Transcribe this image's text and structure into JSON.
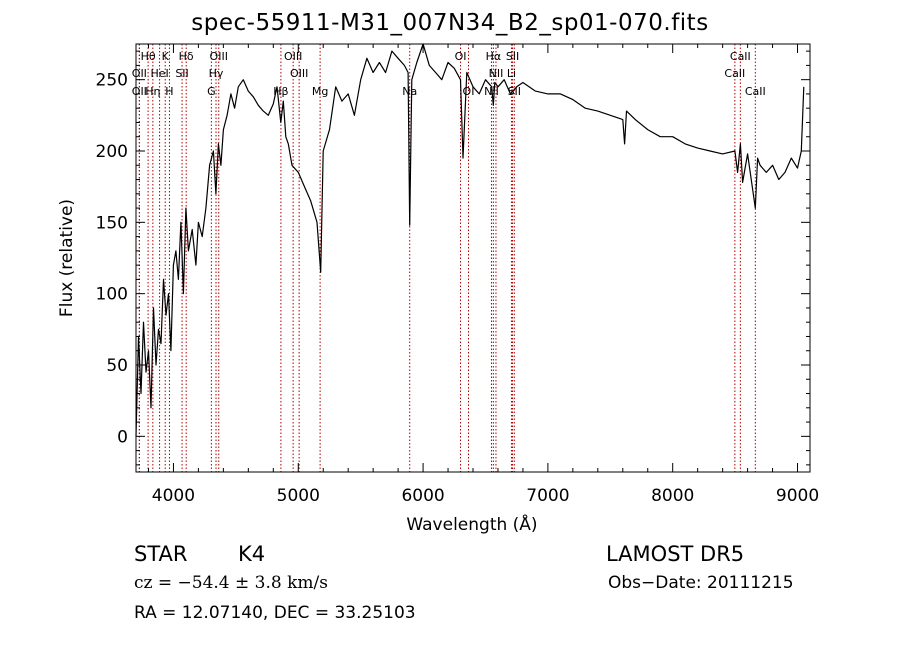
{
  "header": {
    "title": "spec-55911-M31_007N34_B2_sp01-070.fits"
  },
  "footer": {
    "class_label": "STAR",
    "subclass_label": "K4",
    "survey_label": "LAMOST  DR5",
    "cz_text": "cz = −54.4 ± 3.8 km/s",
    "obs_date_text": "Obs−Date: 20111215",
    "radec_text": "RA =  12.07140, DEC =  33.25103"
  },
  "colors": {
    "spectrum": "#000000",
    "line_markers": "#b00000",
    "axes": "#000000"
  },
  "chart_data": {
    "type": "line",
    "title": "spec-55911-M31_007N34_B2_sp01-070.fits",
    "xlabel": "Wavelength (Å)",
    "ylabel": "Flux (relative)",
    "xlim": [
      3700,
      9100
    ],
    "ylim": [
      -25,
      275
    ],
    "grid": false,
    "x_ticks": [
      4000,
      5000,
      6000,
      7000,
      8000,
      9000
    ],
    "y_ticks": [
      0,
      50,
      100,
      150,
      200,
      250
    ],
    "series": [
      {
        "x": [
          3700,
          3720,
          3740,
          3760,
          3780,
          3800,
          3820,
          3840,
          3860,
          3880,
          3900,
          3920,
          3940,
          3960,
          3980,
          4000,
          4020,
          4040,
          4060,
          4080,
          4100,
          4120,
          4150,
          4180,
          4200,
          4230,
          4260,
          4290,
          4320,
          4340,
          4360,
          4380,
          4400,
          4430,
          4460,
          4490,
          4520,
          4560,
          4600,
          4640,
          4680,
          4720,
          4760,
          4800,
          4830,
          4860,
          4880,
          4900,
          4920,
          4950,
          5000,
          5050,
          5100,
          5150,
          5180,
          5200,
          5250,
          5300,
          5350,
          5400,
          5450,
          5500,
          5550,
          5600,
          5650,
          5700,
          5750,
          5800,
          5850,
          5880,
          5893,
          5910,
          5950,
          6000,
          6050,
          6100,
          6150,
          6200,
          6250,
          6300,
          6320,
          6350,
          6400,
          6450,
          6500,
          6550,
          6563,
          6575,
          6600,
          6650,
          6700,
          6750,
          6800,
          6900,
          7000,
          7100,
          7200,
          7300,
          7400,
          7500,
          7600,
          7615,
          7630,
          7700,
          7800,
          7900,
          8000,
          8100,
          8200,
          8300,
          8400,
          8498,
          8520,
          8542,
          8560,
          8600,
          8662,
          8680,
          8700,
          8750,
          8800,
          8850,
          8900,
          8950,
          9000,
          9030,
          9050
        ],
        "y": [
          0,
          70,
          30,
          80,
          45,
          60,
          20,
          90,
          50,
          75,
          65,
          110,
          85,
          100,
          60,
          120,
          130,
          110,
          150,
          100,
          160,
          130,
          145,
          120,
          150,
          140,
          160,
          190,
          200,
          170,
          205,
          190,
          215,
          225,
          240,
          230,
          245,
          250,
          242,
          238,
          232,
          228,
          225,
          233,
          245,
          220,
          235,
          210,
          205,
          190,
          185,
          175,
          165,
          150,
          115,
          200,
          215,
          245,
          235,
          240,
          225,
          250,
          265,
          255,
          262,
          255,
          270,
          265,
          260,
          255,
          148,
          250,
          262,
          275,
          260,
          255,
          250,
          262,
          258,
          250,
          195,
          255,
          245,
          240,
          250,
          245,
          232,
          248,
          245,
          250,
          240,
          245,
          248,
          242,
          240,
          240,
          236,
          230,
          228,
          225,
          222,
          205,
          228,
          222,
          215,
          210,
          210,
          205,
          202,
          200,
          198,
          200,
          185,
          205,
          178,
          198,
          160,
          195,
          190,
          185,
          190,
          180,
          185,
          195,
          188,
          200,
          245
        ]
      }
    ],
    "annotations": [
      {
        "label": "Hθ",
        "x": 3797,
        "row": 0
      },
      {
        "label": "K",
        "x": 3934,
        "row": 0
      },
      {
        "label": "Hδ",
        "x": 4102,
        "row": 0
      },
      {
        "label": "OIII",
        "x": 4363,
        "row": 0
      },
      {
        "label": "OIII",
        "x": 4959,
        "row": 0
      },
      {
        "label": "OI",
        "x": 6300,
        "row": 0
      },
      {
        "label": "Hα",
        "x": 6563,
        "row": 0
      },
      {
        "label": "SII",
        "x": 6717,
        "row": 0
      },
      {
        "label": "CaII",
        "x": 8542,
        "row": 0
      },
      {
        "label": "OII",
        "x": 3727,
        "row": 1
      },
      {
        "label": "HeI",
        "x": 3889,
        "row": 1
      },
      {
        "label": "SII",
        "x": 4069,
        "row": 1
      },
      {
        "label": "Hγ",
        "x": 4341,
        "row": 1
      },
      {
        "label": "OIII",
        "x": 5007,
        "row": 1
      },
      {
        "label": "NII",
        "x": 6584,
        "row": 1
      },
      {
        "label": "Li",
        "x": 6708,
        "row": 1
      },
      {
        "label": "CaII",
        "x": 8498,
        "row": 1
      },
      {
        "label": "OII",
        "x": 3727,
        "row": 2
      },
      {
        "label": "Hη",
        "x": 3835,
        "row": 2
      },
      {
        "label": "H",
        "x": 3968,
        "row": 2
      },
      {
        "label": "G",
        "x": 4304,
        "row": 2
      },
      {
        "label": "Hβ",
        "x": 4861,
        "row": 2
      },
      {
        "label": "Mg",
        "x": 5175,
        "row": 2
      },
      {
        "label": "Na",
        "x": 5893,
        "row": 2
      },
      {
        "label": "OI",
        "x": 6364,
        "row": 2
      },
      {
        "label": "NII",
        "x": 6548,
        "row": 2
      },
      {
        "label": "SII",
        "x": 6731,
        "row": 2
      },
      {
        "label": "CaII",
        "x": 8662,
        "row": 2
      }
    ]
  }
}
